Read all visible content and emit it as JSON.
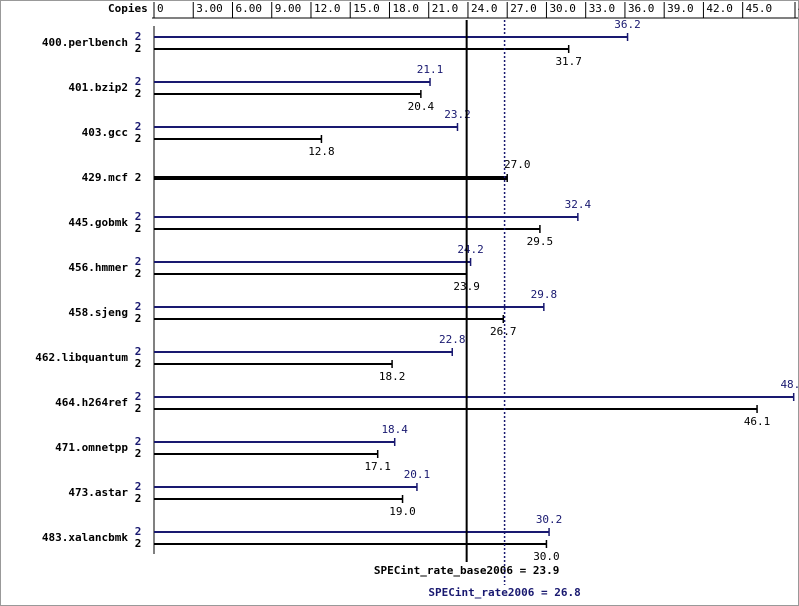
{
  "chart_data": {
    "type": "bar",
    "copies_label": "Copies",
    "categories": [
      "400.perlbench",
      "401.bzip2",
      "403.gcc",
      "429.mcf",
      "445.gobmk",
      "456.hmmer",
      "458.sjeng",
      "462.libquantum",
      "464.h264ref",
      "471.omnetpp",
      "473.astar",
      "483.xalancbmk"
    ],
    "series": [
      {
        "name": "peak",
        "color": "#191970",
        "copies": [
          2,
          2,
          2,
          null,
          2,
          2,
          2,
          2,
          2,
          2,
          2,
          2
        ],
        "values": [
          36.2,
          21.1,
          23.2,
          null,
          32.4,
          24.2,
          29.8,
          22.8,
          48.9,
          18.4,
          20.1,
          30.2
        ],
        "value_labels": [
          "36.2",
          "21.1",
          "23.2",
          null,
          "32.4",
          "24.2",
          "29.8",
          "22.8",
          "48.9",
          "18.4",
          "20.1",
          "30.2"
        ]
      },
      {
        "name": "base",
        "color": "#000000",
        "copies": [
          2,
          2,
          2,
          2,
          2,
          2,
          2,
          2,
          2,
          2,
          2,
          2
        ],
        "values": [
          31.7,
          20.4,
          12.8,
          27.0,
          29.5,
          23.9,
          26.7,
          18.2,
          46.1,
          17.1,
          19.0,
          30.0
        ],
        "value_labels": [
          "31.7",
          "20.4",
          "12.8",
          "27.0",
          "29.5",
          "23.9",
          "26.7",
          "18.2",
          "46.1",
          "17.1",
          "19.0",
          "30.0"
        ]
      }
    ],
    "xlim": [
      0,
      49
    ],
    "xticks": [
      0,
      {
        "value": 3,
        "label": "3.00"
      },
      {
        "value": 6,
        "label": "6.00"
      },
      {
        "value": 9,
        "label": "9.00"
      },
      {
        "value": 12,
        "label": "12.0"
      },
      {
        "value": 15,
        "label": "15.0"
      },
      {
        "value": 18,
        "label": "18.0"
      },
      {
        "value": 21,
        "label": "21.0"
      },
      {
        "value": 24,
        "label": "24.0"
      },
      {
        "value": 27,
        "label": "27.0"
      },
      {
        "value": 30,
        "label": "30.0"
      },
      {
        "value": 33,
        "label": "33.0"
      },
      {
        "value": 36,
        "label": "36.0"
      },
      {
        "value": 39,
        "label": "39.0"
      },
      {
        "value": 42,
        "label": "42.0"
      },
      {
        "value": 45,
        "label": "45.0"
      },
      {
        "value": 49,
        "label": "49.0"
      }
    ],
    "reference_lines": [
      {
        "label": "SPECint_rate_base2006 = 23.9",
        "value": 23.9,
        "color": "#000000",
        "style": "solid"
      },
      {
        "label": "SPECint_rate2006 = 26.8",
        "value": 26.8,
        "color": "#191970",
        "style": "dotted"
      }
    ]
  }
}
